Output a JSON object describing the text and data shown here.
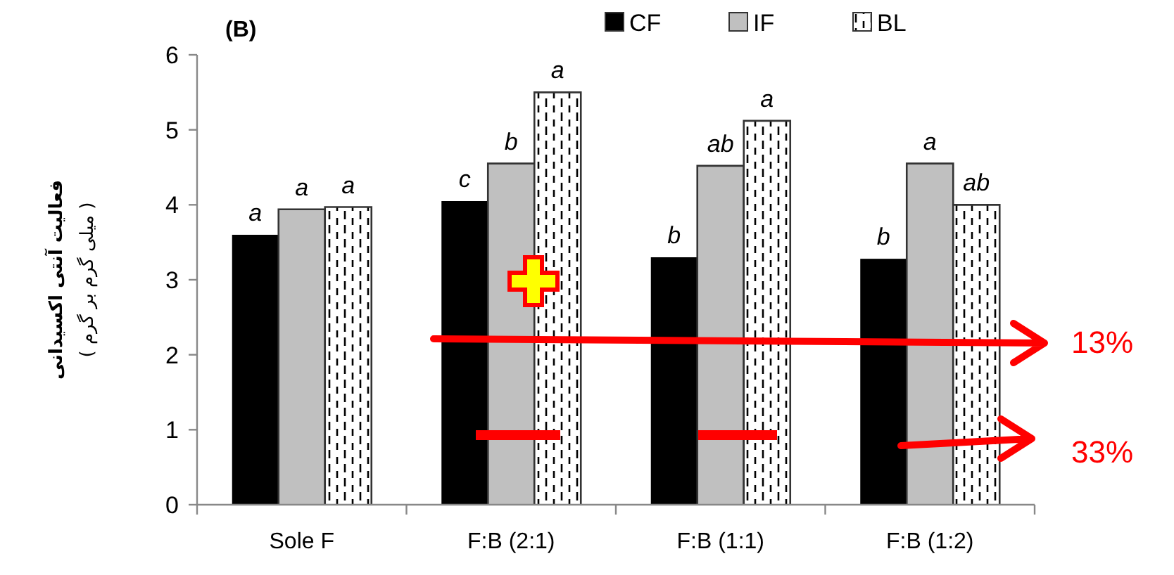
{
  "chart_data": {
    "type": "bar",
    "title": "(B)",
    "ylabel": "فعالیت آنتی اکسیدانی\n( میلی گرم بر گرم )",
    "categories": [
      "Sole F",
      "F:B (2:1)",
      "F:B (1:1)",
      "F:B (1:2)"
    ],
    "series": [
      {
        "name": "CF",
        "color": "#000000",
        "values": [
          3.6,
          4.05,
          3.3,
          3.28
        ],
        "value_labels": [
          "a",
          "c",
          "b",
          "b"
        ]
      },
      {
        "name": "IF",
        "color": "#c0c0c0",
        "values": [
          3.94,
          4.55,
          4.52,
          4.55
        ],
        "value_labels": [
          "a",
          "b",
          "ab",
          "a"
        ]
      },
      {
        "name": "BL",
        "color": "#ffffff",
        "values": [
          3.97,
          5.5,
          5.12,
          4.0
        ],
        "value_labels": [
          "a",
          "a",
          "a",
          "ab"
        ]
      }
    ],
    "ylim": [
      0,
      6
    ],
    "yticks": [
      0,
      1,
      2,
      3,
      4,
      5,
      6
    ],
    "grid": false,
    "legend": "top",
    "annotations": [
      "13%",
      "33%"
    ]
  }
}
